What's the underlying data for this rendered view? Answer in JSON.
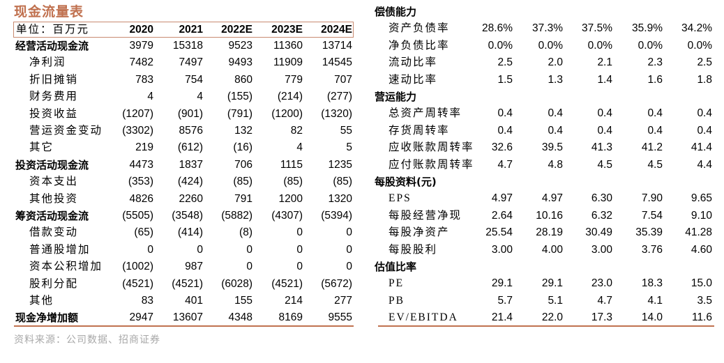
{
  "cashflow": {
    "title": "现金流量表",
    "unit_label": "单位：百万元",
    "years": [
      "2020",
      "2021",
      "2022E",
      "2023E",
      "2024E"
    ],
    "rows": [
      {
        "label": "经营活动现金流",
        "section": true,
        "values": [
          "3979",
          "15318",
          "9523",
          "11360",
          "13714"
        ]
      },
      {
        "label": "净利润",
        "values": [
          "7482",
          "7497",
          "9493",
          "11909",
          "14545"
        ]
      },
      {
        "label": "折旧摊销",
        "values": [
          "783",
          "754",
          "860",
          "779",
          "707"
        ]
      },
      {
        "label": "财务费用",
        "values": [
          "4",
          "4",
          "(155)",
          "(214)",
          "(277)"
        ]
      },
      {
        "label": "投资收益",
        "values": [
          "(1207)",
          "(901)",
          "(791)",
          "(1200)",
          "(1320)"
        ]
      },
      {
        "label": "营运资金变动",
        "values": [
          "(3302)",
          "8576",
          "132",
          "82",
          "55"
        ]
      },
      {
        "label": "其它",
        "values": [
          "219",
          "(612)",
          "(16)",
          "4",
          "5"
        ]
      },
      {
        "label": "投资活动现金流",
        "section": true,
        "values": [
          "4473",
          "1837",
          "706",
          "1115",
          "1235"
        ]
      },
      {
        "label": "资本支出",
        "values": [
          "(353)",
          "(424)",
          "(85)",
          "(85)",
          "(85)"
        ]
      },
      {
        "label": "其他投资",
        "values": [
          "4826",
          "2260",
          "791",
          "1200",
          "1320"
        ]
      },
      {
        "label": "筹资活动现金流",
        "section": true,
        "values": [
          "(5505)",
          "(3548)",
          "(5882)",
          "(4307)",
          "(5394)"
        ]
      },
      {
        "label": "借款变动",
        "values": [
          "(65)",
          "(414)",
          "(8)",
          "0",
          "0"
        ]
      },
      {
        "label": "普通股增加",
        "values": [
          "0",
          "0",
          "0",
          "0",
          "0"
        ]
      },
      {
        "label": "资本公积增加",
        "values": [
          "(1002)",
          "987",
          "0",
          "0",
          "0"
        ]
      },
      {
        "label": "股利分配",
        "values": [
          "(4521)",
          "(4521)",
          "(6028)",
          "(4521)",
          "(5672)"
        ]
      },
      {
        "label": "其他",
        "values": [
          "83",
          "401",
          "155",
          "214",
          "277"
        ]
      },
      {
        "label": "现金净增加额",
        "section": true,
        "values": [
          "2947",
          "13607",
          "4348",
          "8169",
          "9555"
        ]
      }
    ]
  },
  "ratios": {
    "rows": [
      {
        "label": "偿债能力",
        "section": true,
        "values": []
      },
      {
        "label": "资产负债率",
        "values": [
          "28.6%",
          "37.3%",
          "37.5%",
          "35.9%",
          "34.2%"
        ]
      },
      {
        "label": "净负债比率",
        "values": [
          "0.0%",
          "0.0%",
          "0.0%",
          "0.0%",
          "0.0%"
        ]
      },
      {
        "label": "流动比率",
        "values": [
          "2.5",
          "2.0",
          "2.1",
          "2.3",
          "2.5"
        ]
      },
      {
        "label": "速动比率",
        "values": [
          "1.5",
          "1.3",
          "1.4",
          "1.6",
          "1.8"
        ]
      },
      {
        "label": "营运能力",
        "section": true,
        "values": []
      },
      {
        "label": "总资产周转率",
        "values": [
          "0.4",
          "0.4",
          "0.4",
          "0.4",
          "0.4"
        ]
      },
      {
        "label": "存货周转率",
        "values": [
          "0.4",
          "0.4",
          "0.4",
          "0.4",
          "0.4"
        ]
      },
      {
        "label": "应收账款周转率",
        "values": [
          "32.6",
          "39.5",
          "41.3",
          "41.2",
          "41.4"
        ]
      },
      {
        "label": "应付账款周转率",
        "values": [
          "4.7",
          "4.8",
          "4.5",
          "4.5",
          "4.4"
        ]
      },
      {
        "label": "每股资料(元)",
        "section": true,
        "values": []
      },
      {
        "label": "EPS",
        "values": [
          "4.97",
          "4.97",
          "6.30",
          "7.90",
          "9.65"
        ]
      },
      {
        "label": "每股经营净现",
        "values": [
          "2.64",
          "10.16",
          "6.32",
          "7.54",
          "9.10"
        ]
      },
      {
        "label": "每股净资产",
        "values": [
          "25.54",
          "28.19",
          "30.49",
          "35.39",
          "41.28"
        ]
      },
      {
        "label": "每股股利",
        "values": [
          "3.00",
          "4.00",
          "3.00",
          "3.76",
          "4.60"
        ]
      },
      {
        "label": "估值比率",
        "section": true,
        "values": []
      },
      {
        "label": "PE",
        "values": [
          "29.1",
          "29.1",
          "23.0",
          "18.3",
          "15.0"
        ]
      },
      {
        "label": "PB",
        "values": [
          "5.7",
          "5.1",
          "4.7",
          "4.1",
          "3.5"
        ]
      },
      {
        "label": "EV/EBITDA",
        "values": [
          "21.4",
          "22.0",
          "17.3",
          "14.0",
          "11.6"
        ]
      }
    ]
  },
  "source": "资料来源：公司数据、招商证券",
  "colors": {
    "accent": "#c0714f",
    "source_text": "#a8a8a8"
  }
}
